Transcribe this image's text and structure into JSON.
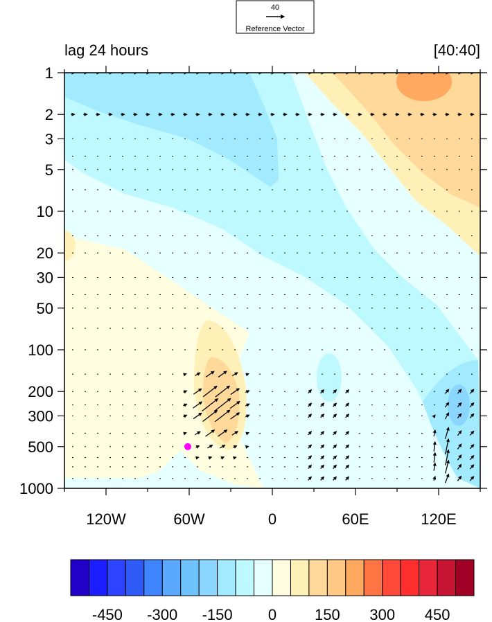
{
  "chart_data": {
    "type": "heatmap",
    "title_left": "lag 24 hours",
    "title_right": "[40:40]",
    "xlabel": "",
    "ylabel": "",
    "x_range": [
      -150,
      150
    ],
    "x_ticks": [
      {
        "value": -120,
        "label": "120W"
      },
      {
        "value": -60,
        "label": "60W"
      },
      {
        "value": 0,
        "label": "0"
      },
      {
        "value": 60,
        "label": "60E"
      },
      {
        "value": 120,
        "label": "120E"
      }
    ],
    "y_scale": "log",
    "y_reversed": true,
    "y_range": [
      1,
      1000
    ],
    "y_ticks": [
      1,
      2,
      3,
      5,
      10,
      20,
      30,
      50,
      100,
      200,
      300,
      500,
      1000
    ],
    "reference_vector": {
      "value": "40",
      "label": "Reference Vector"
    },
    "marker": {
      "x": -61,
      "y": 500,
      "color": "#ff00ff"
    },
    "colorbar": {
      "colors": [
        "#2100c8",
        "#1b1dff",
        "#2c44ff",
        "#2e5bf8",
        "#3f85ff",
        "#5ba9ff",
        "#6ec3ff",
        "#8ad6ff",
        "#a2ebff",
        "#bef9ff",
        "#e6ffff",
        "#fffde0",
        "#fff0b8",
        "#ffd99a",
        "#ffc884",
        "#ffa860",
        "#ff7443",
        "#ff4a3a",
        "#ff2f2f",
        "#e8263a",
        "#c81433",
        "#a00025"
      ],
      "tick_labels": [
        "-450",
        "-300",
        "-150",
        "0",
        "150",
        "300",
        "450"
      ],
      "tick_values": [
        -450,
        -300,
        -150,
        0,
        150,
        300,
        450
      ]
    },
    "contour_levels": [
      {
        "level": -150,
        "color": "#a2ebff"
      },
      {
        "level": -100,
        "color": "#bef9ff"
      },
      {
        "level": -50,
        "color": "#e6ffff"
      },
      {
        "level": 0,
        "color": "#fffde0"
      },
      {
        "level": 50,
        "color": "#fff0b8"
      },
      {
        "level": 100,
        "color": "#ffd99a"
      },
      {
        "level": 150,
        "color": "#ffc884"
      },
      {
        "level": 200,
        "color": "#ffa860"
      }
    ]
  }
}
